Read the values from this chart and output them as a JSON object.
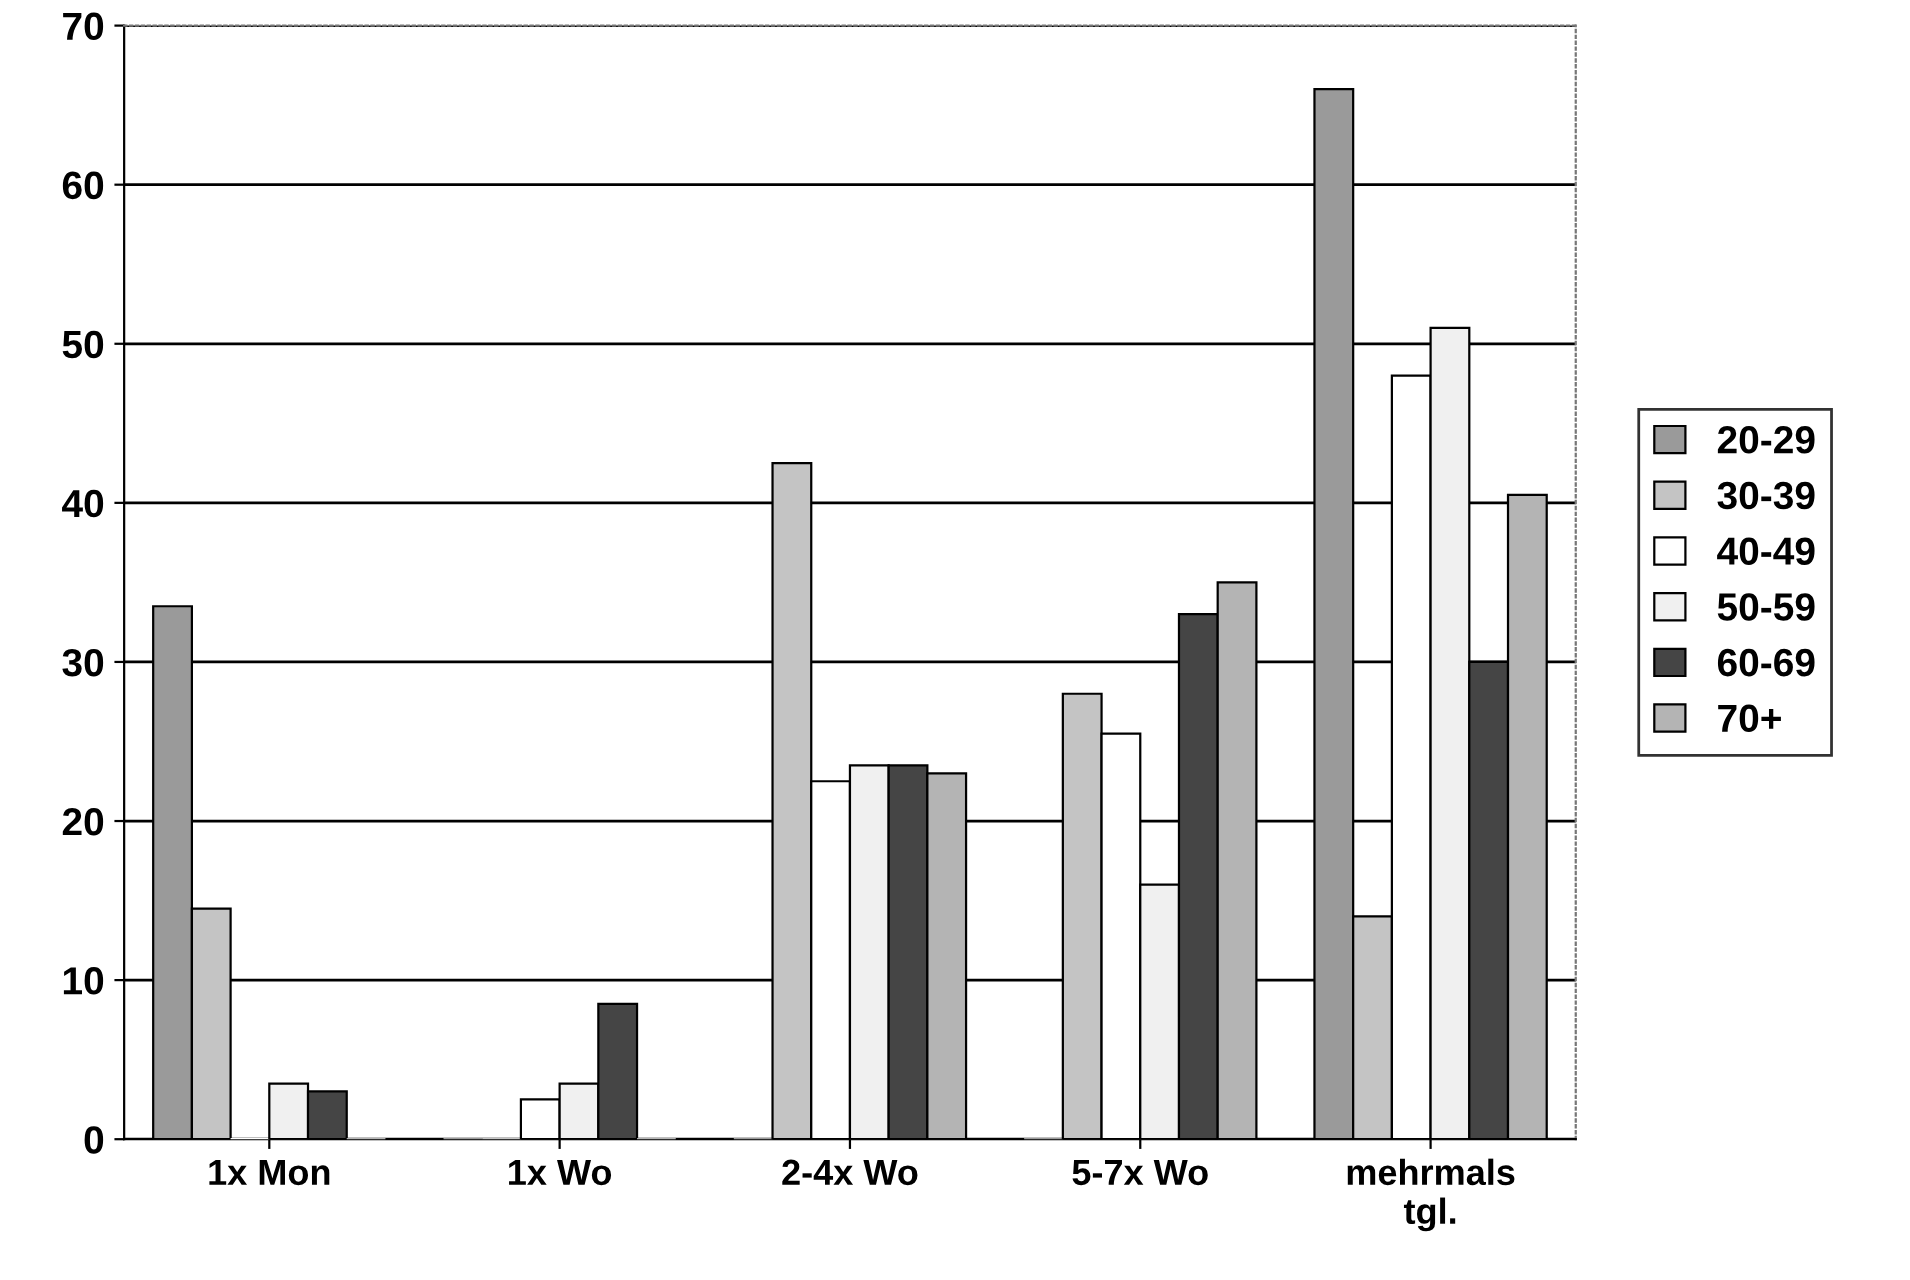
{
  "chart_data": {
    "type": "bar",
    "categories": [
      "1x Mon",
      "1x Wo",
      "2-4x Wo",
      "5-7x Wo",
      "mehrmals\ntgl."
    ],
    "series": [
      {
        "name": "20-29",
        "color": "#9a9a9a",
        "values": [
          33.5,
          0,
          0,
          0,
          66
        ]
      },
      {
        "name": "30-39",
        "color": "#c4c4c4",
        "values": [
          14.5,
          0,
          42.5,
          28,
          14
        ]
      },
      {
        "name": "40-49",
        "color": "#ffffff",
        "values": [
          0,
          2.5,
          22.5,
          25.5,
          48
        ]
      },
      {
        "name": "50-59",
        "color": "#f0f0f0",
        "values": [
          3.5,
          3.5,
          23.5,
          16,
          51
        ]
      },
      {
        "name": "60-69",
        "color": "#454545",
        "values": [
          3,
          8.5,
          23.5,
          33,
          30
        ]
      },
      {
        "name": "70+",
        "color": "#b4b4b4",
        "values": [
          0,
          0,
          23,
          35,
          40.5
        ]
      }
    ],
    "ylim": [
      0,
      70
    ],
    "yticks": [
      0,
      10,
      20,
      30,
      40,
      50,
      60,
      70
    ],
    "grid": "y",
    "legend": "right"
  }
}
